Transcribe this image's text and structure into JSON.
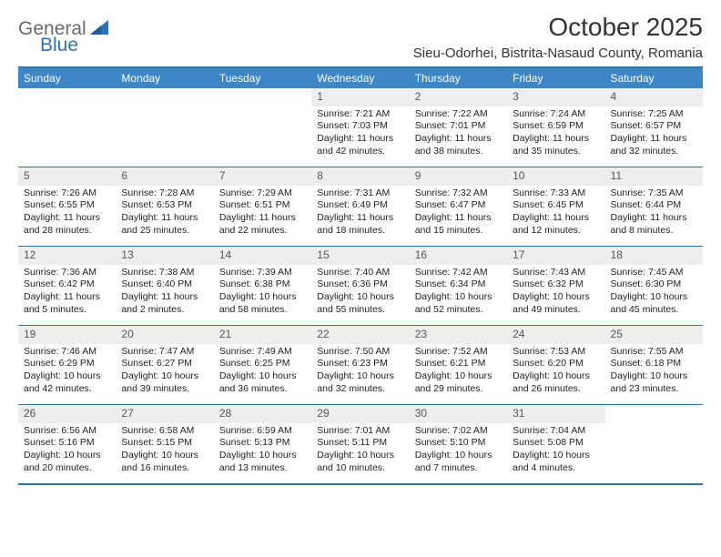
{
  "brand": {
    "part1": "General",
    "part2": "Blue"
  },
  "title": "October 2025",
  "location": "Sieu-Odorhei, Bistrita-Nasaud County, Romania",
  "theme": {
    "header_bg": "#3d87c7",
    "header_text": "#ffffff",
    "border": "#2e74b5",
    "daynum_bg": "#eeeeee",
    "daynum_text": "#555555",
    "cell_text": "#222222",
    "brand_gray": "#6a6a6a",
    "brand_blue": "#2e74b5"
  },
  "weekdays": [
    "Sunday",
    "Monday",
    "Tuesday",
    "Wednesday",
    "Thursday",
    "Friday",
    "Saturday"
  ],
  "weeks": [
    [
      {
        "n": "",
        "sr": "",
        "ss": "",
        "dl": ""
      },
      {
        "n": "",
        "sr": "",
        "ss": "",
        "dl": ""
      },
      {
        "n": "",
        "sr": "",
        "ss": "",
        "dl": ""
      },
      {
        "n": "1",
        "sr": "Sunrise: 7:21 AM",
        "ss": "Sunset: 7:03 PM",
        "dl": "Daylight: 11 hours and 42 minutes."
      },
      {
        "n": "2",
        "sr": "Sunrise: 7:22 AM",
        "ss": "Sunset: 7:01 PM",
        "dl": "Daylight: 11 hours and 38 minutes."
      },
      {
        "n": "3",
        "sr": "Sunrise: 7:24 AM",
        "ss": "Sunset: 6:59 PM",
        "dl": "Daylight: 11 hours and 35 minutes."
      },
      {
        "n": "4",
        "sr": "Sunrise: 7:25 AM",
        "ss": "Sunset: 6:57 PM",
        "dl": "Daylight: 11 hours and 32 minutes."
      }
    ],
    [
      {
        "n": "5",
        "sr": "Sunrise: 7:26 AM",
        "ss": "Sunset: 6:55 PM",
        "dl": "Daylight: 11 hours and 28 minutes."
      },
      {
        "n": "6",
        "sr": "Sunrise: 7:28 AM",
        "ss": "Sunset: 6:53 PM",
        "dl": "Daylight: 11 hours and 25 minutes."
      },
      {
        "n": "7",
        "sr": "Sunrise: 7:29 AM",
        "ss": "Sunset: 6:51 PM",
        "dl": "Daylight: 11 hours and 22 minutes."
      },
      {
        "n": "8",
        "sr": "Sunrise: 7:31 AM",
        "ss": "Sunset: 6:49 PM",
        "dl": "Daylight: 11 hours and 18 minutes."
      },
      {
        "n": "9",
        "sr": "Sunrise: 7:32 AM",
        "ss": "Sunset: 6:47 PM",
        "dl": "Daylight: 11 hours and 15 minutes."
      },
      {
        "n": "10",
        "sr": "Sunrise: 7:33 AM",
        "ss": "Sunset: 6:45 PM",
        "dl": "Daylight: 11 hours and 12 minutes."
      },
      {
        "n": "11",
        "sr": "Sunrise: 7:35 AM",
        "ss": "Sunset: 6:44 PM",
        "dl": "Daylight: 11 hours and 8 minutes."
      }
    ],
    [
      {
        "n": "12",
        "sr": "Sunrise: 7:36 AM",
        "ss": "Sunset: 6:42 PM",
        "dl": "Daylight: 11 hours and 5 minutes."
      },
      {
        "n": "13",
        "sr": "Sunrise: 7:38 AM",
        "ss": "Sunset: 6:40 PM",
        "dl": "Daylight: 11 hours and 2 minutes."
      },
      {
        "n": "14",
        "sr": "Sunrise: 7:39 AM",
        "ss": "Sunset: 6:38 PM",
        "dl": "Daylight: 10 hours and 58 minutes."
      },
      {
        "n": "15",
        "sr": "Sunrise: 7:40 AM",
        "ss": "Sunset: 6:36 PM",
        "dl": "Daylight: 10 hours and 55 minutes."
      },
      {
        "n": "16",
        "sr": "Sunrise: 7:42 AM",
        "ss": "Sunset: 6:34 PM",
        "dl": "Daylight: 10 hours and 52 minutes."
      },
      {
        "n": "17",
        "sr": "Sunrise: 7:43 AM",
        "ss": "Sunset: 6:32 PM",
        "dl": "Daylight: 10 hours and 49 minutes."
      },
      {
        "n": "18",
        "sr": "Sunrise: 7:45 AM",
        "ss": "Sunset: 6:30 PM",
        "dl": "Daylight: 10 hours and 45 minutes."
      }
    ],
    [
      {
        "n": "19",
        "sr": "Sunrise: 7:46 AM",
        "ss": "Sunset: 6:29 PM",
        "dl": "Daylight: 10 hours and 42 minutes."
      },
      {
        "n": "20",
        "sr": "Sunrise: 7:47 AM",
        "ss": "Sunset: 6:27 PM",
        "dl": "Daylight: 10 hours and 39 minutes."
      },
      {
        "n": "21",
        "sr": "Sunrise: 7:49 AM",
        "ss": "Sunset: 6:25 PM",
        "dl": "Daylight: 10 hours and 36 minutes."
      },
      {
        "n": "22",
        "sr": "Sunrise: 7:50 AM",
        "ss": "Sunset: 6:23 PM",
        "dl": "Daylight: 10 hours and 32 minutes."
      },
      {
        "n": "23",
        "sr": "Sunrise: 7:52 AM",
        "ss": "Sunset: 6:21 PM",
        "dl": "Daylight: 10 hours and 29 minutes."
      },
      {
        "n": "24",
        "sr": "Sunrise: 7:53 AM",
        "ss": "Sunset: 6:20 PM",
        "dl": "Daylight: 10 hours and 26 minutes."
      },
      {
        "n": "25",
        "sr": "Sunrise: 7:55 AM",
        "ss": "Sunset: 6:18 PM",
        "dl": "Daylight: 10 hours and 23 minutes."
      }
    ],
    [
      {
        "n": "26",
        "sr": "Sunrise: 6:56 AM",
        "ss": "Sunset: 5:16 PM",
        "dl": "Daylight: 10 hours and 20 minutes."
      },
      {
        "n": "27",
        "sr": "Sunrise: 6:58 AM",
        "ss": "Sunset: 5:15 PM",
        "dl": "Daylight: 10 hours and 16 minutes."
      },
      {
        "n": "28",
        "sr": "Sunrise: 6:59 AM",
        "ss": "Sunset: 5:13 PM",
        "dl": "Daylight: 10 hours and 13 minutes."
      },
      {
        "n": "29",
        "sr": "Sunrise: 7:01 AM",
        "ss": "Sunset: 5:11 PM",
        "dl": "Daylight: 10 hours and 10 minutes."
      },
      {
        "n": "30",
        "sr": "Sunrise: 7:02 AM",
        "ss": "Sunset: 5:10 PM",
        "dl": "Daylight: 10 hours and 7 minutes."
      },
      {
        "n": "31",
        "sr": "Sunrise: 7:04 AM",
        "ss": "Sunset: 5:08 PM",
        "dl": "Daylight: 10 hours and 4 minutes."
      },
      {
        "n": "",
        "sr": "",
        "ss": "",
        "dl": ""
      }
    ]
  ]
}
